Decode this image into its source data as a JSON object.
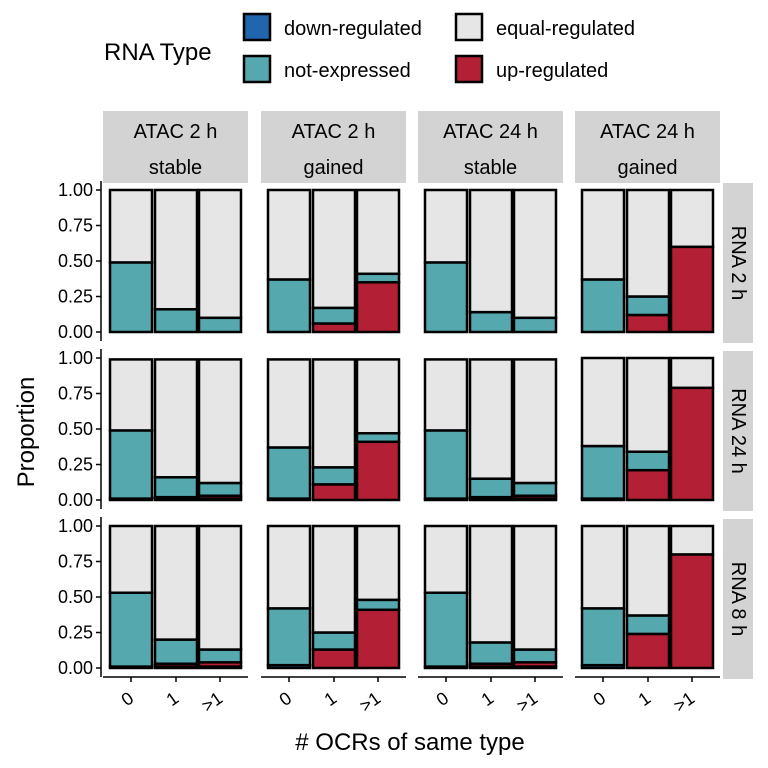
{
  "chart_data": {
    "type": "bar",
    "stacked": true,
    "xlabel": "# OCRs of same type",
    "ylabel": "Proportion",
    "ylim": [
      0,
      1
    ],
    "yticks": [
      "0.00",
      "0.25",
      "0.50",
      "0.75",
      "1.00"
    ],
    "categories": [
      "0",
      "1",
      ">1"
    ],
    "legend": {
      "title": "RNA Type",
      "placement": "top",
      "items": [
        {
          "name": "down-regulated",
          "color": "#2166ac"
        },
        {
          "name": "equal-regulated",
          "color": "#e6e6e6"
        },
        {
          "name": "not-expressed",
          "color": "#54a8ae"
        },
        {
          "name": "up-regulated",
          "color": "#b31f34"
        }
      ]
    },
    "stack_order": [
      "down-regulated",
      "up-regulated",
      "not-expressed",
      "equal-regulated"
    ],
    "columns": [
      {
        "line1": "ATAC 2 h",
        "line2": "stable"
      },
      {
        "line1": "ATAC 2 h",
        "line2": "gained"
      },
      {
        "line1": "ATAC 24 h",
        "line2": "stable"
      },
      {
        "line1": "ATAC 24 h",
        "line2": "gained"
      }
    ],
    "rows": [
      "RNA 2 h",
      "RNA 24 h",
      "RNA 8 h"
    ],
    "panels": [
      [
        [
          {
            "down-regulated": 0.0,
            "up-regulated": 0.0,
            "not-expressed": 0.49,
            "equal-regulated": 0.51
          },
          {
            "down-regulated": 0.0,
            "up-regulated": 0.0,
            "not-expressed": 0.16,
            "equal-regulated": 0.84
          },
          {
            "down-regulated": 0.0,
            "up-regulated": 0.0,
            "not-expressed": 0.1,
            "equal-regulated": 0.9
          }
        ],
        [
          {
            "down-regulated": 0.0,
            "up-regulated": 0.0,
            "not-expressed": 0.37,
            "equal-regulated": 0.63
          },
          {
            "down-regulated": 0.0,
            "up-regulated": 0.06,
            "not-expressed": 0.11,
            "equal-regulated": 0.83
          },
          {
            "down-regulated": 0.0,
            "up-regulated": 0.35,
            "not-expressed": 0.06,
            "equal-regulated": 0.59
          }
        ],
        [
          {
            "down-regulated": 0.0,
            "up-regulated": 0.0,
            "not-expressed": 0.49,
            "equal-regulated": 0.51
          },
          {
            "down-regulated": 0.0,
            "up-regulated": 0.0,
            "not-expressed": 0.14,
            "equal-regulated": 0.86
          },
          {
            "down-regulated": 0.0,
            "up-regulated": 0.0,
            "not-expressed": 0.1,
            "equal-regulated": 0.9
          }
        ],
        [
          {
            "down-regulated": 0.0,
            "up-regulated": 0.0,
            "not-expressed": 0.37,
            "equal-regulated": 0.63
          },
          {
            "down-regulated": 0.0,
            "up-regulated": 0.12,
            "not-expressed": 0.13,
            "equal-regulated": 0.75
          },
          {
            "down-regulated": 0.0,
            "up-regulated": 0.6,
            "not-expressed": 0.0,
            "equal-regulated": 0.4
          }
        ]
      ],
      [
        [
          {
            "down-regulated": 0.01,
            "up-regulated": 0.0,
            "not-expressed": 0.48,
            "equal-regulated": 0.5
          },
          {
            "down-regulated": 0.01,
            "up-regulated": 0.01,
            "not-expressed": 0.14,
            "equal-regulated": 0.83
          },
          {
            "down-regulated": 0.01,
            "up-regulated": 0.02,
            "not-expressed": 0.09,
            "equal-regulated": 0.87
          }
        ],
        [
          {
            "down-regulated": 0.01,
            "up-regulated": 0.0,
            "not-expressed": 0.36,
            "equal-regulated": 0.62
          },
          {
            "down-regulated": 0.0,
            "up-regulated": 0.11,
            "not-expressed": 0.12,
            "equal-regulated": 0.76
          },
          {
            "down-regulated": 0.0,
            "up-regulated": 0.41,
            "not-expressed": 0.06,
            "equal-regulated": 0.52
          }
        ],
        [
          {
            "down-regulated": 0.01,
            "up-regulated": 0.0,
            "not-expressed": 0.48,
            "equal-regulated": 0.5
          },
          {
            "down-regulated": 0.01,
            "up-regulated": 0.01,
            "not-expressed": 0.13,
            "equal-regulated": 0.84
          },
          {
            "down-regulated": 0.01,
            "up-regulated": 0.02,
            "not-expressed": 0.09,
            "equal-regulated": 0.87
          }
        ],
        [
          {
            "down-regulated": 0.01,
            "up-regulated": 0.0,
            "not-expressed": 0.37,
            "equal-regulated": 0.62
          },
          {
            "down-regulated": 0.0,
            "up-regulated": 0.21,
            "not-expressed": 0.13,
            "equal-regulated": 0.66
          },
          {
            "down-regulated": 0.0,
            "up-regulated": 0.79,
            "not-expressed": 0.0,
            "equal-regulated": 0.21
          }
        ]
      ],
      [
        [
          {
            "down-regulated": 0.01,
            "up-regulated": 0.0,
            "not-expressed": 0.52,
            "equal-regulated": 0.47
          },
          {
            "down-regulated": 0.01,
            "up-regulated": 0.02,
            "not-expressed": 0.17,
            "equal-regulated": 0.8
          },
          {
            "down-regulated": 0.01,
            "up-regulated": 0.03,
            "not-expressed": 0.09,
            "equal-regulated": 0.87
          }
        ],
        [
          {
            "down-regulated": 0.02,
            "up-regulated": 0.0,
            "not-expressed": 0.4,
            "equal-regulated": 0.58
          },
          {
            "down-regulated": 0.0,
            "up-regulated": 0.13,
            "not-expressed": 0.12,
            "equal-regulated": 0.75
          },
          {
            "down-regulated": 0.0,
            "up-regulated": 0.41,
            "not-expressed": 0.07,
            "equal-regulated": 0.52
          }
        ],
        [
          {
            "down-regulated": 0.01,
            "up-regulated": 0.0,
            "not-expressed": 0.52,
            "equal-regulated": 0.47
          },
          {
            "down-regulated": 0.01,
            "up-regulated": 0.02,
            "not-expressed": 0.15,
            "equal-regulated": 0.82
          },
          {
            "down-regulated": 0.01,
            "up-regulated": 0.03,
            "not-expressed": 0.09,
            "equal-regulated": 0.87
          }
        ],
        [
          {
            "down-regulated": 0.02,
            "up-regulated": 0.0,
            "not-expressed": 0.4,
            "equal-regulated": 0.58
          },
          {
            "down-regulated": 0.0,
            "up-regulated": 0.24,
            "not-expressed": 0.13,
            "equal-regulated": 0.63
          },
          {
            "down-regulated": 0.0,
            "up-regulated": 0.8,
            "not-expressed": 0.0,
            "equal-regulated": 0.2
          }
        ]
      ]
    ]
  }
}
